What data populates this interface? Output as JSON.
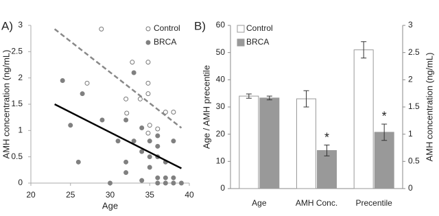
{
  "chart_data": [
    {
      "type": "scatter",
      "panel_label": "A)",
      "x_label": "Age",
      "y_label": "AMH concentration (ng/mL)",
      "xlim": [
        20,
        40
      ],
      "xticks": [
        20,
        25,
        30,
        35,
        40
      ],
      "ylim": [
        0,
        3
      ],
      "yticks": [
        0,
        0.5,
        1,
        1.5,
        2,
        2.5,
        3
      ],
      "legend": "top-right",
      "series": [
        {
          "name": "Control",
          "color": "#777777",
          "marker": "open",
          "line_color": "#888888",
          "line_style": "dashed",
          "x": [
            27.1,
            28.9,
            32.8,
            34.8,
            34.8,
            34.8,
            32,
            33.8,
            32.1,
            35,
            34.8,
            36,
            37,
            38
          ],
          "values": [
            1.9,
            2.93,
            2.3,
            2.3,
            1.9,
            1.7,
            1.6,
            1.6,
            1.33,
            1.1,
            0.95,
            1.03,
            1.35,
            1.35
          ],
          "trend_x": [
            23,
            39
          ],
          "trend_y": [
            2.93,
            1.05
          ]
        },
        {
          "name": "BRCA",
          "color": "#808080",
          "marker": "filled",
          "line_color": "#000000",
          "line_style": "solid",
          "x": [
            24,
            25,
            26,
            26.5,
            29,
            30,
            31,
            32,
            32,
            32,
            33,
            33,
            34,
            34,
            34,
            35,
            35,
            35,
            36,
            36,
            36,
            36,
            36,
            37,
            37,
            37,
            38,
            38,
            38,
            39
          ],
          "values": [
            1.95,
            1.1,
            0.4,
            1.7,
            1.2,
            0,
            0.8,
            1.2,
            0.4,
            0.2,
            2.1,
            0.8,
            1.05,
            0.6,
            0.05,
            0.8,
            0.5,
            0.3,
            0.9,
            0.7,
            0.5,
            0.1,
            0,
            0.4,
            0.1,
            0,
            0.8,
            0.1,
            0,
            0
          ],
          "trend_x": [
            23,
            39
          ],
          "trend_y": [
            1.5,
            0.28
          ]
        }
      ]
    },
    {
      "type": "bar",
      "panel_label": "B)",
      "y_label": "Age / AMH precentile",
      "y2_label": "AMH concentration (ng/mL)",
      "categories": [
        "Age",
        "AMH Conc.",
        "Precentile"
      ],
      "ylim": [
        0,
        60
      ],
      "yticks": [
        0,
        10,
        20,
        30,
        40,
        50,
        60
      ],
      "y2lim": [
        0,
        3
      ],
      "y2ticks": [
        0,
        0.5,
        1,
        1.5,
        2,
        2.5,
        3
      ],
      "legend": "top-left",
      "series": [
        {
          "name": "Control",
          "color": "#ffffff",
          "values": [
            34,
            33,
            51
          ],
          "errors": [
            0.8,
            3,
            3
          ]
        },
        {
          "name": "BRCA",
          "color": "#999999",
          "values": [
            33.3,
            14,
            20.7
          ],
          "errors": [
            0.7,
            2,
            3
          ],
          "annotations": [
            null,
            "*",
            "*"
          ]
        }
      ]
    }
  ]
}
